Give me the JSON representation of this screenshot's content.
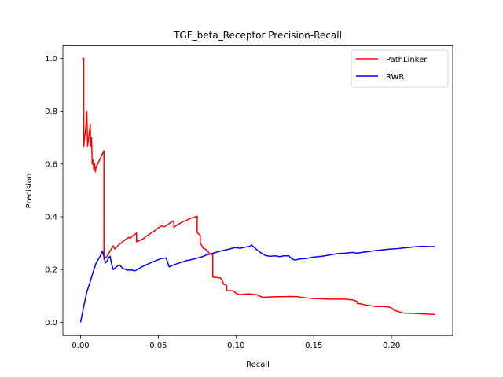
{
  "chart_data": {
    "type": "line",
    "title": "TGF_beta_Receptor Precision-Recall",
    "xlabel": "Recall",
    "ylabel": "Precision",
    "xlim": [
      -0.0114,
      0.2394
    ],
    "ylim": [
      -0.05,
      1.05
    ],
    "xticks": [
      0.0,
      0.05,
      0.1,
      0.15,
      0.2
    ],
    "xtick_labels": [
      "0.00",
      "0.05",
      "0.10",
      "0.15",
      "0.20"
    ],
    "yticks": [
      0.0,
      0.2,
      0.4,
      0.6,
      0.8,
      1.0
    ],
    "ytick_labels": [
      "0.0",
      "0.2",
      "0.4",
      "0.6",
      "0.8",
      "1.0"
    ],
    "grid": false,
    "legend_position": "top-right",
    "series": [
      {
        "name": "PathLinker",
        "color": "#ff0000",
        "points": [
          [
            0.001,
            1.0
          ],
          [
            0.002,
            1.0
          ],
          [
            0.002,
            0.667
          ],
          [
            0.0035,
            0.75
          ],
          [
            0.004,
            0.8
          ],
          [
            0.0045,
            0.667
          ],
          [
            0.0055,
            0.714
          ],
          [
            0.0062,
            0.75
          ],
          [
            0.0065,
            0.667
          ],
          [
            0.007,
            0.7
          ],
          [
            0.0075,
            0.6
          ],
          [
            0.008,
            0.615
          ],
          [
            0.0085,
            0.58
          ],
          [
            0.009,
            0.6
          ],
          [
            0.0095,
            0.57
          ],
          [
            0.01,
            0.59
          ],
          [
            0.011,
            0.6
          ],
          [
            0.015,
            0.65
          ],
          [
            0.015,
            0.24
          ],
          [
            0.017,
            0.25
          ],
          [
            0.019,
            0.27
          ],
          [
            0.02,
            0.28
          ],
          [
            0.021,
            0.29
          ],
          [
            0.022,
            0.278
          ],
          [
            0.024,
            0.29
          ],
          [
            0.026,
            0.3
          ],
          [
            0.028,
            0.31
          ],
          [
            0.03,
            0.318
          ],
          [
            0.031,
            0.322
          ],
          [
            0.032,
            0.318
          ],
          [
            0.033,
            0.325
          ],
          [
            0.034,
            0.33
          ],
          [
            0.035,
            0.333
          ],
          [
            0.036,
            0.338
          ],
          [
            0.036,
            0.305
          ],
          [
            0.038,
            0.31
          ],
          [
            0.04,
            0.315
          ],
          [
            0.042,
            0.325
          ],
          [
            0.044,
            0.333
          ],
          [
            0.046,
            0.34
          ],
          [
            0.048,
            0.348
          ],
          [
            0.05,
            0.358
          ],
          [
            0.052,
            0.365
          ],
          [
            0.054,
            0.362
          ],
          [
            0.056,
            0.37
          ],
          [
            0.058,
            0.378
          ],
          [
            0.06,
            0.385
          ],
          [
            0.06,
            0.36
          ],
          [
            0.062,
            0.368
          ],
          [
            0.064,
            0.375
          ],
          [
            0.066,
            0.382
          ],
          [
            0.068,
            0.386
          ],
          [
            0.07,
            0.392
          ],
          [
            0.072,
            0.396
          ],
          [
            0.075,
            0.402
          ],
          [
            0.075,
            0.34
          ],
          [
            0.077,
            0.33
          ],
          [
            0.077,
            0.3
          ],
          [
            0.079,
            0.28
          ],
          [
            0.081,
            0.275
          ],
          [
            0.083,
            0.26
          ],
          [
            0.085,
            0.255
          ],
          [
            0.085,
            0.172
          ],
          [
            0.09,
            0.168
          ],
          [
            0.091,
            0.16
          ],
          [
            0.092,
            0.145
          ],
          [
            0.094,
            0.14
          ],
          [
            0.094,
            0.12
          ],
          [
            0.098,
            0.12
          ],
          [
            0.1,
            0.11
          ],
          [
            0.102,
            0.105
          ],
          [
            0.106,
            0.107
          ],
          [
            0.108,
            0.108
          ],
          [
            0.113,
            0.105
          ],
          [
            0.115,
            0.1
          ],
          [
            0.117,
            0.095
          ],
          [
            0.125,
            0.097
          ],
          [
            0.13,
            0.097
          ],
          [
            0.135,
            0.098
          ],
          [
            0.14,
            0.097
          ],
          [
            0.142,
            0.095
          ],
          [
            0.146,
            0.092
          ],
          [
            0.15,
            0.09
          ],
          [
            0.16,
            0.088
          ],
          [
            0.17,
            0.088
          ],
          [
            0.175,
            0.085
          ],
          [
            0.178,
            0.079
          ],
          [
            0.178,
            0.072
          ],
          [
            0.18,
            0.07
          ],
          [
            0.184,
            0.065
          ],
          [
            0.19,
            0.06
          ],
          [
            0.195,
            0.06
          ],
          [
            0.198,
            0.058
          ],
          [
            0.2,
            0.055
          ],
          [
            0.202,
            0.045
          ],
          [
            0.204,
            0.042
          ],
          [
            0.206,
            0.038
          ],
          [
            0.208,
            0.035
          ],
          [
            0.215,
            0.034
          ],
          [
            0.22,
            0.032
          ],
          [
            0.228,
            0.03
          ]
        ]
      },
      {
        "name": "RWR",
        "color": "#0000ff",
        "points": [
          [
            0.0,
            0.0
          ],
          [
            0.002,
            0.06
          ],
          [
            0.004,
            0.115
          ],
          [
            0.006,
            0.15
          ],
          [
            0.008,
            0.19
          ],
          [
            0.01,
            0.225
          ],
          [
            0.012,
            0.245
          ],
          [
            0.013,
            0.255
          ],
          [
            0.014,
            0.27
          ],
          [
            0.015,
            0.25
          ],
          [
            0.016,
            0.225
          ],
          [
            0.017,
            0.232
          ],
          [
            0.018,
            0.245
          ],
          [
            0.019,
            0.25
          ],
          [
            0.02,
            0.22
          ],
          [
            0.021,
            0.2
          ],
          [
            0.023,
            0.21
          ],
          [
            0.025,
            0.218
          ],
          [
            0.027,
            0.205
          ],
          [
            0.03,
            0.198
          ],
          [
            0.033,
            0.198
          ],
          [
            0.035,
            0.195
          ],
          [
            0.038,
            0.205
          ],
          [
            0.04,
            0.212
          ],
          [
            0.043,
            0.22
          ],
          [
            0.046,
            0.228
          ],
          [
            0.049,
            0.235
          ],
          [
            0.052,
            0.242
          ],
          [
            0.055,
            0.244
          ],
          [
            0.057,
            0.21
          ],
          [
            0.06,
            0.218
          ],
          [
            0.062,
            0.222
          ],
          [
            0.065,
            0.228
          ],
          [
            0.068,
            0.234
          ],
          [
            0.07,
            0.236
          ],
          [
            0.073,
            0.24
          ],
          [
            0.076,
            0.245
          ],
          [
            0.079,
            0.25
          ],
          [
            0.081,
            0.255
          ],
          [
            0.084,
            0.26
          ],
          [
            0.087,
            0.265
          ],
          [
            0.09,
            0.27
          ],
          [
            0.093,
            0.274
          ],
          [
            0.096,
            0.278
          ],
          [
            0.099,
            0.283
          ],
          [
            0.101,
            0.282
          ],
          [
            0.103,
            0.281
          ],
          [
            0.106,
            0.285
          ],
          [
            0.109,
            0.288
          ],
          [
            0.11,
            0.293
          ],
          [
            0.113,
            0.277
          ],
          [
            0.116,
            0.263
          ],
          [
            0.119,
            0.253
          ],
          [
            0.122,
            0.25
          ],
          [
            0.125,
            0.252
          ],
          [
            0.128,
            0.249
          ],
          [
            0.131,
            0.252
          ],
          [
            0.134,
            0.252
          ],
          [
            0.136,
            0.24
          ],
          [
            0.138,
            0.236
          ],
          [
            0.141,
            0.24
          ],
          [
            0.145,
            0.242
          ],
          [
            0.15,
            0.247
          ],
          [
            0.155,
            0.25
          ],
          [
            0.16,
            0.255
          ],
          [
            0.165,
            0.26
          ],
          [
            0.17,
            0.262
          ],
          [
            0.175,
            0.265
          ],
          [
            0.178,
            0.262
          ],
          [
            0.181,
            0.265
          ],
          [
            0.185,
            0.268
          ],
          [
            0.19,
            0.272
          ],
          [
            0.195,
            0.275
          ],
          [
            0.2,
            0.278
          ],
          [
            0.205,
            0.28
          ],
          [
            0.21,
            0.283
          ],
          [
            0.215,
            0.286
          ],
          [
            0.22,
            0.288
          ],
          [
            0.225,
            0.287
          ],
          [
            0.228,
            0.287
          ]
        ]
      }
    ]
  }
}
